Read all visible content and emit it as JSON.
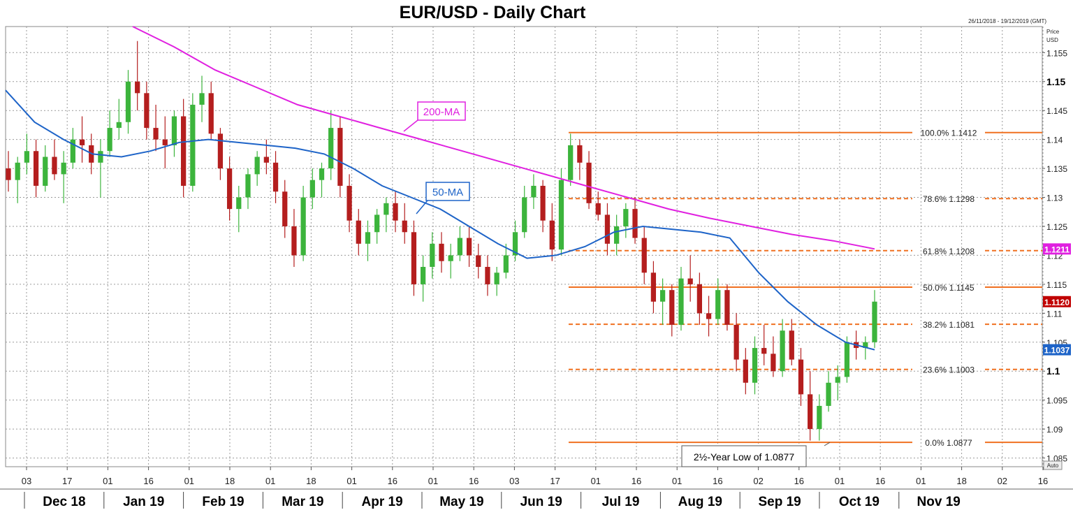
{
  "chart_data": {
    "type": "candlestick",
    "title": "EUR/USD - Daily Chart",
    "date_range": "26/11/2018 - 19/12/2019 (GMT)",
    "price_axis_label": "Price",
    "currency_label": "USD",
    "auto_label": "Auto",
    "ylim": [
      1.0835,
      1.1595
    ],
    "y_ticks": [
      {
        "label": "1.155",
        "value": 1.155,
        "major": false
      },
      {
        "label": "1.15",
        "value": 1.15,
        "major": true
      },
      {
        "label": "1.145",
        "value": 1.145,
        "major": false
      },
      {
        "label": "1.14",
        "value": 1.14,
        "major": false
      },
      {
        "label": "1.135",
        "value": 1.135,
        "major": false
      },
      {
        "label": "1.13",
        "value": 1.13,
        "major": false
      },
      {
        "label": "1.125",
        "value": 1.125,
        "major": false
      },
      {
        "label": "1.12",
        "value": 1.12,
        "major": false
      },
      {
        "label": "1.115",
        "value": 1.115,
        "major": false
      },
      {
        "label": "1.11",
        "value": 1.11,
        "major": false
      },
      {
        "label": "1.105",
        "value": 1.105,
        "major": false
      },
      {
        "label": "1.1",
        "value": 1.1,
        "major": true
      },
      {
        "label": "1.095",
        "value": 1.095,
        "major": false
      },
      {
        "label": "1.09",
        "value": 1.09,
        "major": false
      },
      {
        "label": "1.085",
        "value": 1.085,
        "major": false
      }
    ],
    "x_day_ticks": [
      "03",
      "17",
      "01",
      "16",
      "01",
      "18",
      "01",
      "18",
      "01",
      "16",
      "01",
      "16",
      "03",
      "17",
      "01",
      "16",
      "01",
      "16",
      "02",
      "16",
      "01",
      "16",
      "01",
      "18",
      "02",
      "16"
    ],
    "months": [
      "Dec 18",
      "Jan 19",
      "Feb 19",
      "Mar 19",
      "Apr 19",
      "May 19",
      "Jun 19",
      "Jul 19",
      "Aug 19",
      "Sep 19",
      "Oct 19",
      "Nov 19"
    ],
    "fibonacci": [
      {
        "label": "100.0%",
        "value": 1.1412,
        "text": "1.1412",
        "dashed": false
      },
      {
        "label": "78.6%",
        "value": 1.1298,
        "text": "1.1298",
        "dashed": true
      },
      {
        "label": "61.8%",
        "value": 1.1208,
        "text": "1.1208",
        "dashed": true
      },
      {
        "label": "50.0%",
        "value": 1.1145,
        "text": "1.1145",
        "dashed": false
      },
      {
        "label": "38.2%",
        "value": 1.1081,
        "text": "1.1081",
        "dashed": true
      },
      {
        "label": "23.6%",
        "value": 1.1003,
        "text": "1.1003",
        "dashed": true
      },
      {
        "label": "0.0%",
        "value": 1.0877,
        "text": "1.0877",
        "dashed": false
      }
    ],
    "price_badges": [
      {
        "name": "ma200-badge",
        "value": 1.1211,
        "text": "1.1211",
        "color": "#e020e0"
      },
      {
        "name": "last-price-badge",
        "value": 1.112,
        "text": "1.1120",
        "color": "#c00000"
      },
      {
        "name": "ma50-badge",
        "value": 1.1037,
        "text": "1.1037",
        "color": "#1e64c8"
      }
    ],
    "ma200_label": "200-MA",
    "ma50_label": "50-MA",
    "annotation": "2½-Year Low of 1.0877",
    "ma200_series": [
      1.1595,
      1.156,
      1.152,
      1.149,
      1.146,
      1.144,
      1.142,
      1.14,
      1.138,
      1.136,
      1.134,
      1.132,
      1.13,
      1.128,
      1.1264,
      1.125,
      1.1236,
      1.1225,
      1.1211
    ],
    "ma50_series": [
      1.1485,
      1.143,
      1.14,
      1.1375,
      1.137,
      1.138,
      1.1395,
      1.14,
      1.1395,
      1.139,
      1.1385,
      1.1375,
      1.135,
      1.132,
      1.13,
      1.128,
      1.125,
      1.122,
      1.1195,
      1.12,
      1.1215,
      1.124,
      1.125,
      1.1245,
      1.124,
      1.123,
      1.117,
      1.112,
      1.108,
      1.105,
      1.1037
    ],
    "candles": [
      [
        1.135,
        1.138,
        1.131,
        1.133
      ],
      [
        1.133,
        1.137,
        1.129,
        1.136
      ],
      [
        1.136,
        1.141,
        1.134,
        1.138
      ],
      [
        1.138,
        1.14,
        1.13,
        1.132
      ],
      [
        1.132,
        1.139,
        1.131,
        1.137
      ],
      [
        1.137,
        1.14,
        1.133,
        1.134
      ],
      [
        1.134,
        1.138,
        1.129,
        1.136
      ],
      [
        1.136,
        1.142,
        1.135,
        1.14
      ],
      [
        1.14,
        1.144,
        1.136,
        1.139
      ],
      [
        1.139,
        1.141,
        1.134,
        1.136
      ],
      [
        1.136,
        1.14,
        1.13,
        1.138
      ],
      [
        1.138,
        1.145,
        1.137,
        1.142
      ],
      [
        1.142,
        1.147,
        1.14,
        1.143
      ],
      [
        1.143,
        1.152,
        1.141,
        1.15
      ],
      [
        1.15,
        1.157,
        1.145,
        1.148
      ],
      [
        1.148,
        1.15,
        1.14,
        1.142
      ],
      [
        1.142,
        1.146,
        1.138,
        1.14
      ],
      [
        1.14,
        1.144,
        1.135,
        1.139
      ],
      [
        1.139,
        1.145,
        1.137,
        1.144
      ],
      [
        1.144,
        1.147,
        1.13,
        1.132
      ],
      [
        1.132,
        1.148,
        1.131,
        1.146
      ],
      [
        1.146,
        1.151,
        1.143,
        1.148
      ],
      [
        1.148,
        1.15,
        1.14,
        1.141
      ],
      [
        1.141,
        1.142,
        1.133,
        1.135
      ],
      [
        1.135,
        1.137,
        1.126,
        1.128
      ],
      [
        1.128,
        1.132,
        1.124,
        1.13
      ],
      [
        1.13,
        1.135,
        1.128,
        1.134
      ],
      [
        1.134,
        1.138,
        1.132,
        1.137
      ],
      [
        1.137,
        1.14,
        1.134,
        1.136
      ],
      [
        1.136,
        1.138,
        1.129,
        1.131
      ],
      [
        1.131,
        1.133,
        1.123,
        1.125
      ],
      [
        1.125,
        1.128,
        1.118,
        1.12
      ],
      [
        1.12,
        1.132,
        1.119,
        1.13
      ],
      [
        1.13,
        1.135,
        1.128,
        1.133
      ],
      [
        1.133,
        1.136,
        1.13,
        1.135
      ],
      [
        1.135,
        1.145,
        1.133,
        1.142
      ],
      [
        1.142,
        1.144,
        1.13,
        1.132
      ],
      [
        1.132,
        1.134,
        1.124,
        1.126
      ],
      [
        1.126,
        1.128,
        1.12,
        1.122
      ],
      [
        1.122,
        1.126,
        1.119,
        1.124
      ],
      [
        1.124,
        1.128,
        1.122,
        1.127
      ],
      [
        1.127,
        1.13,
        1.124,
        1.129
      ],
      [
        1.129,
        1.131,
        1.124,
        1.126
      ],
      [
        1.126,
        1.129,
        1.122,
        1.124
      ],
      [
        1.124,
        1.126,
        1.113,
        1.115
      ],
      [
        1.115,
        1.12,
        1.112,
        1.118
      ],
      [
        1.118,
        1.124,
        1.116,
        1.122
      ],
      [
        1.122,
        1.124,
        1.117,
        1.119
      ],
      [
        1.119,
        1.122,
        1.116,
        1.12
      ],
      [
        1.12,
        1.125,
        1.119,
        1.123
      ],
      [
        1.123,
        1.125,
        1.118,
        1.12
      ],
      [
        1.12,
        1.122,
        1.116,
        1.118
      ],
      [
        1.118,
        1.12,
        1.113,
        1.115
      ],
      [
        1.115,
        1.118,
        1.113,
        1.117
      ],
      [
        1.117,
        1.122,
        1.116,
        1.12
      ],
      [
        1.12,
        1.126,
        1.119,
        1.124
      ],
      [
        1.124,
        1.132,
        1.123,
        1.13
      ],
      [
        1.13,
        1.134,
        1.128,
        1.132
      ],
      [
        1.132,
        1.133,
        1.124,
        1.126
      ],
      [
        1.126,
        1.129,
        1.119,
        1.121
      ],
      [
        1.121,
        1.135,
        1.12,
        1.133
      ],
      [
        1.133,
        1.141,
        1.132,
        1.139
      ],
      [
        1.139,
        1.14,
        1.133,
        1.136
      ],
      [
        1.136,
        1.138,
        1.128,
        1.129
      ],
      [
        1.129,
        1.131,
        1.126,
        1.127
      ],
      [
        1.127,
        1.129,
        1.12,
        1.122
      ],
      [
        1.122,
        1.127,
        1.12,
        1.125
      ],
      [
        1.125,
        1.129,
        1.123,
        1.128
      ],
      [
        1.128,
        1.13,
        1.122,
        1.123
      ],
      [
        1.123,
        1.125,
        1.115,
        1.117
      ],
      [
        1.117,
        1.119,
        1.11,
        1.112
      ],
      [
        1.112,
        1.116,
        1.108,
        1.114
      ],
      [
        1.114,
        1.115,
        1.106,
        1.108
      ],
      [
        1.108,
        1.118,
        1.107,
        1.116
      ],
      [
        1.116,
        1.12,
        1.112,
        1.115
      ],
      [
        1.115,
        1.117,
        1.108,
        1.11
      ],
      [
        1.11,
        1.113,
        1.106,
        1.109
      ],
      [
        1.109,
        1.116,
        1.108,
        1.114
      ],
      [
        1.114,
        1.115,
        1.107,
        1.108
      ],
      [
        1.108,
        1.11,
        1.1,
        1.102
      ],
      [
        1.102,
        1.104,
        1.096,
        1.098
      ],
      [
        1.098,
        1.106,
        1.096,
        1.104
      ],
      [
        1.104,
        1.108,
        1.101,
        1.103
      ],
      [
        1.103,
        1.106,
        1.099,
        1.1
      ],
      [
        1.1,
        1.109,
        1.099,
        1.107
      ],
      [
        1.107,
        1.109,
        1.101,
        1.102
      ],
      [
        1.102,
        1.104,
        1.094,
        1.096
      ],
      [
        1.096,
        1.1,
        1.088,
        1.09
      ],
      [
        1.09,
        1.096,
        1.088,
        1.094
      ],
      [
        1.094,
        1.1,
        1.093,
        1.098
      ],
      [
        1.098,
        1.101,
        1.095,
        1.099
      ],
      [
        1.099,
        1.106,
        1.098,
        1.105
      ],
      [
        1.105,
        1.107,
        1.102,
        1.104
      ],
      [
        1.104,
        1.106,
        1.102,
        1.105
      ],
      [
        1.105,
        1.114,
        1.104,
        1.112
      ]
    ]
  }
}
